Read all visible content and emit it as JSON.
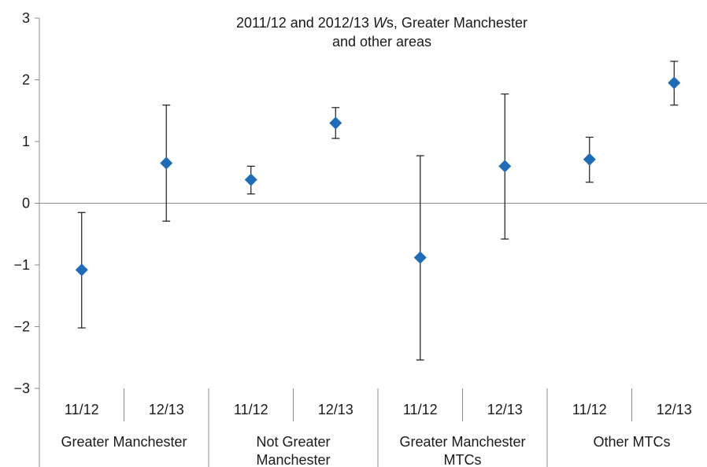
{
  "chart_data": {
    "type": "scatter",
    "title_line1_pre": "2011/12 and 2012/13 ",
    "title_line1_italic": "W",
    "title_line1_post": "s, Greater Manchester",
    "title_line2": "and other areas",
    "ylim": [
      -3,
      3
    ],
    "yticks": [
      "3",
      "2",
      "1",
      "0",
      "−1",
      "−2",
      "−3"
    ],
    "ytick_values": [
      3,
      2,
      1,
      0,
      -1,
      -2,
      -3
    ],
    "categories": [
      "11/12",
      "12/13",
      "11/12",
      "12/13",
      "11/12",
      "12/13",
      "11/12",
      "12/13"
    ],
    "groups": [
      {
        "lines": [
          "Greater Manchester"
        ]
      },
      {
        "lines": [
          "Not Greater",
          "Manchester"
        ]
      },
      {
        "lines": [
          "Greater Manchester",
          "MTCs"
        ]
      },
      {
        "lines": [
          "Other MTCs"
        ]
      }
    ],
    "points": [
      {
        "value": -1.08,
        "lower": -2.02,
        "upper": -0.15
      },
      {
        "value": 0.65,
        "lower": -0.29,
        "upper": 1.59
      },
      {
        "value": 0.38,
        "lower": 0.15,
        "upper": 0.6
      },
      {
        "value": 1.3,
        "lower": 1.05,
        "upper": 1.55
      },
      {
        "value": -0.88,
        "lower": -2.54,
        "upper": 0.77
      },
      {
        "value": 0.6,
        "lower": -0.58,
        "upper": 1.77
      },
      {
        "value": 0.71,
        "lower": 0.34,
        "upper": 1.07
      },
      {
        "value": 1.95,
        "lower": 1.59,
        "upper": 2.3
      }
    ],
    "marker_color": "#1f6bb5",
    "axis_color": "#8c8c8c",
    "errorbar_color": "#1a1a1a"
  }
}
